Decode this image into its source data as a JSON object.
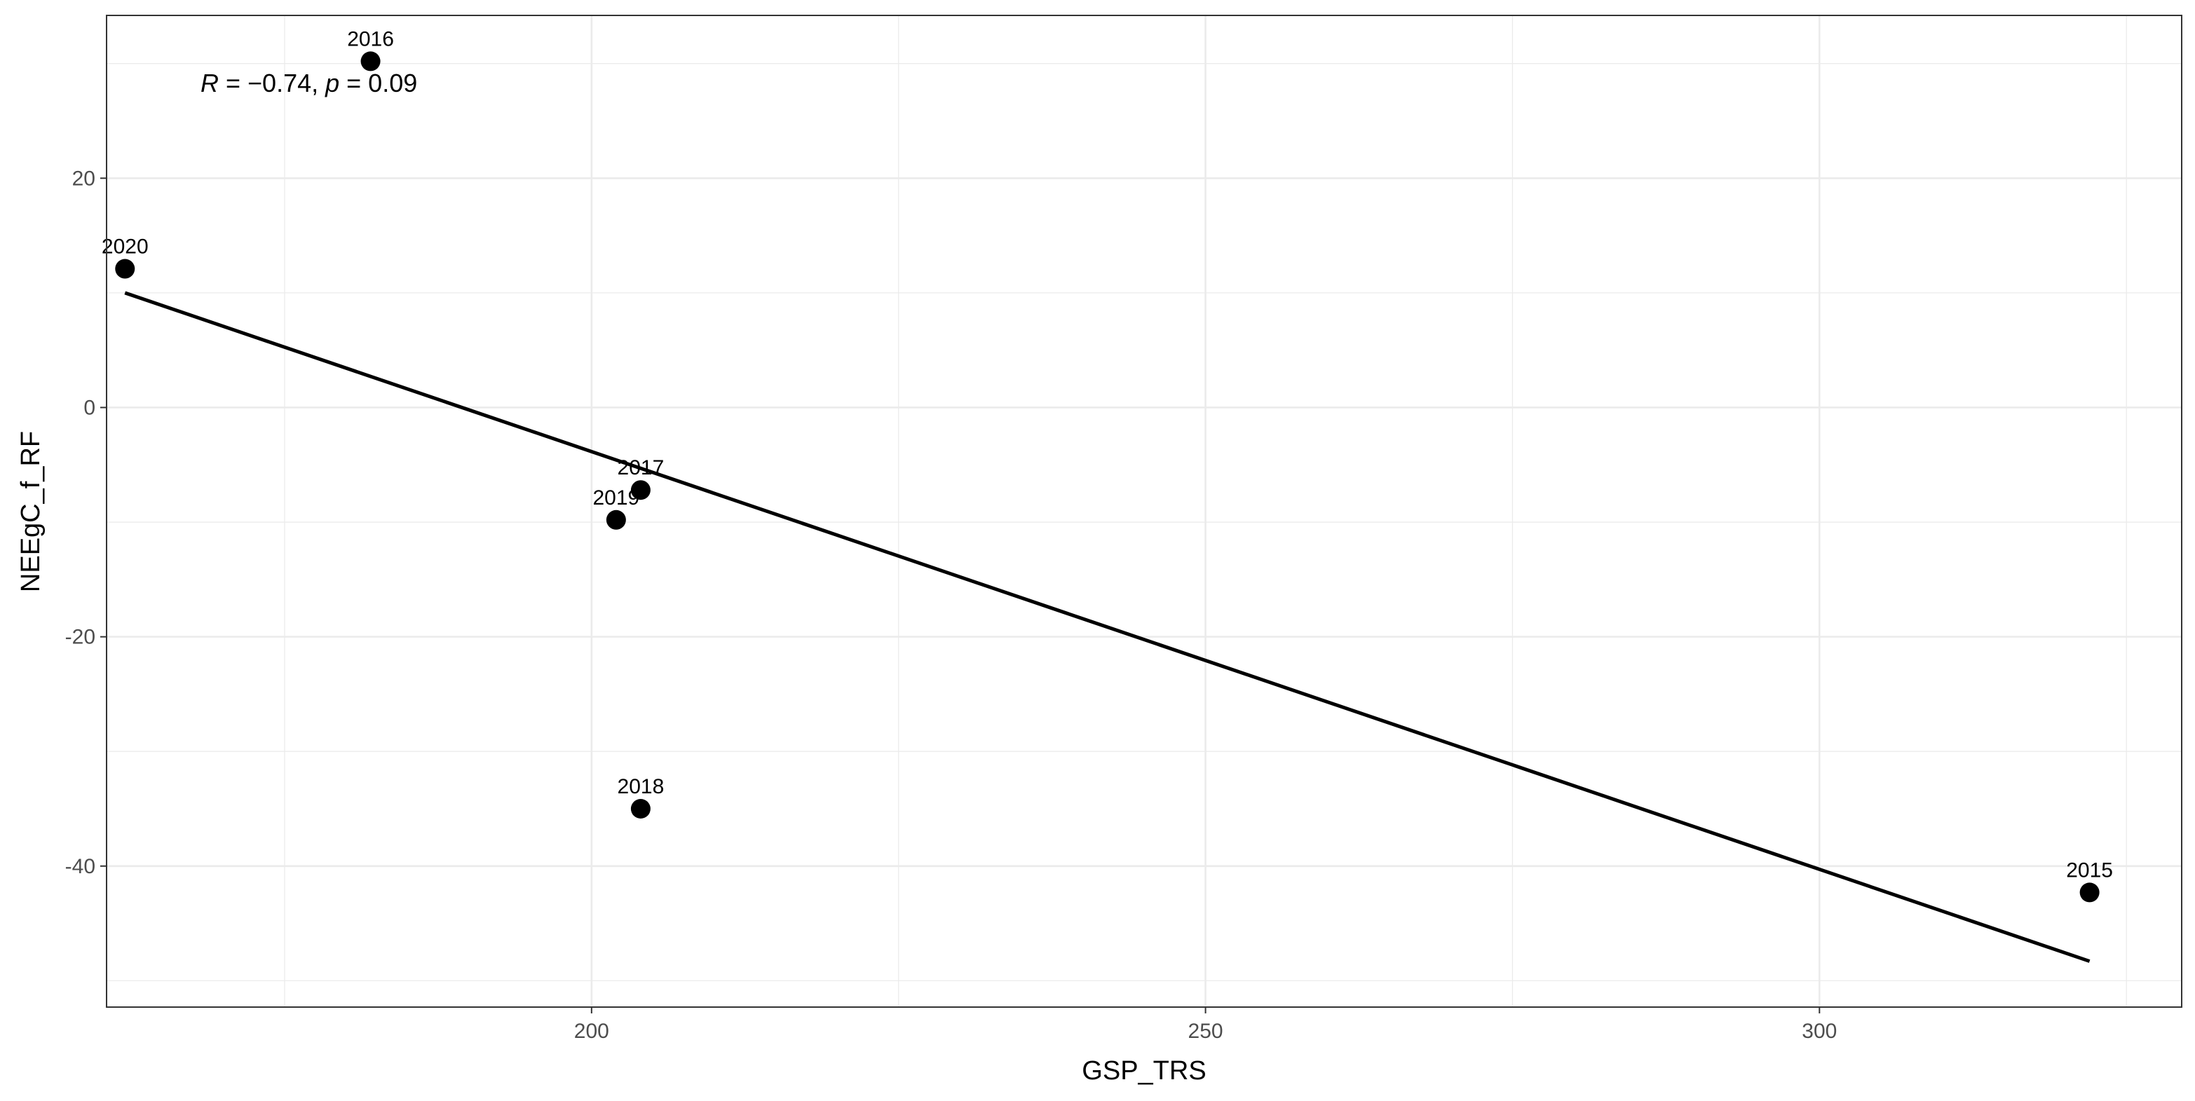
{
  "chart_data": {
    "type": "scatter",
    "xlabel": "GSP_TRS",
    "ylabel": "NEEgC_f_RF",
    "xlim": [
      160.5,
      329.5
    ],
    "ylim": [
      -52.3,
      34.2
    ],
    "x_ticks": [
      200,
      250,
      300
    ],
    "y_ticks": [
      -40,
      -20,
      0,
      20
    ],
    "x_tick_labels": [
      "200",
      "250",
      "300"
    ],
    "y_tick_labels": [
      "-40",
      "-20",
      "0",
      "20"
    ],
    "grid": true,
    "points": [
      {
        "label": "2015",
        "x": 322,
        "y": -42.3
      },
      {
        "label": "2016",
        "x": 182,
        "y": 30.2
      },
      {
        "label": "2017",
        "x": 204,
        "y": -7.2
      },
      {
        "label": "2018",
        "x": 204,
        "y": -35.0
      },
      {
        "label": "2019",
        "x": 202,
        "y": -9.8
      },
      {
        "label": "2020",
        "x": 162,
        "y": 12.1
      }
    ],
    "trendline": {
      "x": [
        162,
        322
      ],
      "y": [
        10.0,
        -48.3
      ]
    },
    "annotation": {
      "r_symbol": "R",
      "r_value": " = −0.74, ",
      "p_symbol": "p",
      "p_value": " = 0.09"
    }
  }
}
